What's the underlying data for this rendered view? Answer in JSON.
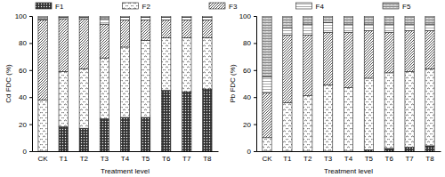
{
  "chart_data": [
    {
      "type": "bar",
      "stacked": true,
      "legend": "top",
      "y_label": "Cd FDC (%)",
      "x_label": "Treatment level",
      "categories": [
        "CK",
        "T1",
        "T2",
        "T3",
        "T4",
        "T5",
        "T6",
        "T7",
        "T8"
      ],
      "ylim": [
        0,
        100
      ],
      "yticks": [
        0,
        20,
        40,
        60,
        80,
        100
      ],
      "series": [
        {
          "name": "F1",
          "color": "#333333",
          "values": [
            0,
            18,
            17,
            24,
            25,
            25,
            45,
            44,
            46
          ]
        },
        {
          "name": "F2",
          "color": "#ffffff",
          "values": [
            38,
            41,
            44,
            45,
            52,
            57,
            39,
            40,
            38
          ]
        },
        {
          "name": "F3",
          "color": "#ffffff",
          "values": [
            59,
            39,
            37,
            25,
            20,
            15,
            13,
            13,
            13
          ]
        },
        {
          "name": "F4",
          "color": "#ffffff",
          "values": [
            1,
            1,
            1,
            4,
            2,
            2,
            2,
            2,
            2
          ]
        },
        {
          "name": "F5",
          "color": "#ffffff",
          "values": [
            2,
            1,
            1,
            2,
            1,
            1,
            1,
            1,
            1
          ]
        }
      ]
    },
    {
      "type": "bar",
      "stacked": true,
      "y_label": "Pb FDC (%)",
      "x_label": "Treatment level",
      "categories": [
        "CK",
        "T1",
        "T2",
        "T3",
        "T4",
        "T5",
        "T6",
        "T7",
        "T8"
      ],
      "ylim": [
        0,
        100
      ],
      "yticks": [
        0,
        20,
        40,
        60,
        80,
        100
      ],
      "series": [
        {
          "name": "F1",
          "color": "#333333",
          "values": [
            0,
            0,
            0,
            0,
            0,
            1,
            2,
            3,
            4
          ]
        },
        {
          "name": "F2",
          "color": "#ffffff",
          "values": [
            10,
            36,
            41,
            49,
            47,
            53,
            56,
            56,
            57
          ]
        },
        {
          "name": "F3",
          "color": "#ffffff",
          "values": [
            33,
            50,
            45,
            39,
            41,
            35,
            30,
            30,
            28
          ]
        },
        {
          "name": "F4",
          "color": "#ffffff",
          "values": [
            12,
            5,
            8,
            7,
            6,
            5,
            6,
            5,
            5
          ]
        },
        {
          "name": "F5",
          "color": "#ffffff",
          "values": [
            45,
            9,
            6,
            5,
            6,
            6,
            6,
            6,
            6
          ]
        }
      ]
    }
  ]
}
